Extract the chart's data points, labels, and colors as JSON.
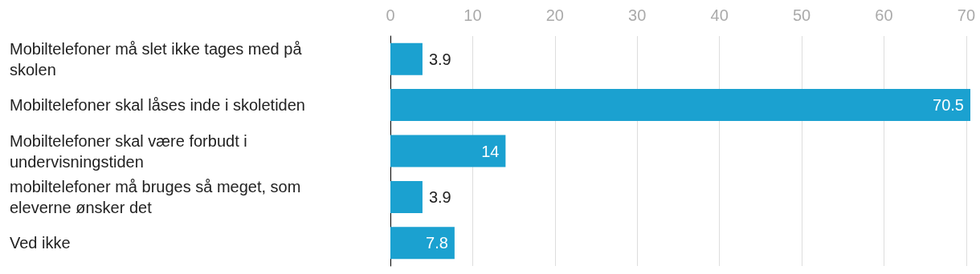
{
  "chart_data": {
    "type": "bar",
    "orientation": "horizontal",
    "categories": [
      "Mobiltelefoner må slet ikke tages med på skolen",
      "Mobiltelefoner skal låses inde i skoletiden",
      "Mobiltelefoner skal være forbudt i undervisningstiden",
      "mobiltelefoner må bruges så meget, som eleverne ønsker det",
      "Ved ikke"
    ],
    "values": [
      3.9,
      70.5,
      14,
      3.9,
      7.8
    ],
    "color": "#1ba1d0",
    "xlim": [
      0,
      70.5
    ],
    "xticks": [
      0,
      10,
      20,
      30,
      40,
      50,
      60,
      70
    ],
    "grid": "x",
    "data_labels": true
  }
}
